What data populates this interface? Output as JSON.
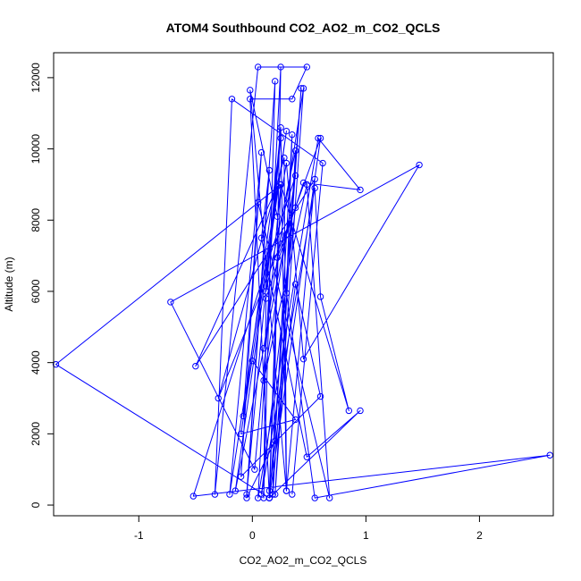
{
  "chart_data": {
    "type": "line",
    "title": "ATOM4 Southbound CO2_AO2_m_CO2_QCLS",
    "xlabel": "CO2_AO2_m_CO2_QCLS",
    "ylabel": "Altitude (m)",
    "xlim": [
      -1.75,
      2.65
    ],
    "ylim": [
      -300,
      12700
    ],
    "xticks": [
      -1,
      0,
      1,
      2
    ],
    "yticks": [
      0,
      2000,
      4000,
      6000,
      8000,
      10000,
      12000
    ],
    "grid": false,
    "legend": "none",
    "series_color": "#0000ff",
    "marker": "open-circle",
    "points": [
      {
        "x": 0.35,
        "y": 300
      },
      {
        "x": 0.62,
        "y": 9600
      },
      {
        "x": -0.18,
        "y": 11400
      },
      {
        "x": -0.33,
        "y": 300
      },
      {
        "x": 0.05,
        "y": 12300
      },
      {
        "x": 0.48,
        "y": 12300
      },
      {
        "x": 0.35,
        "y": 11400
      },
      {
        "x": -0.02,
        "y": 11400
      },
      {
        "x": 0.15,
        "y": 200
      },
      {
        "x": 0.43,
        "y": 11700
      },
      {
        "x": 0.18,
        "y": 300
      },
      {
        "x": 0.25,
        "y": 12300
      },
      {
        "x": 0.05,
        "y": 200
      },
      {
        "x": 0.58,
        "y": 10300
      },
      {
        "x": 0.95,
        "y": 8850
      },
      {
        "x": 0.45,
        "y": 9050
      },
      {
        "x": 0.12,
        "y": 5800
      },
      {
        "x": 0.1,
        "y": 200
      },
      {
        "x": 0.2,
        "y": 11900
      },
      {
        "x": -0.05,
        "y": 300
      },
      {
        "x": 0.25,
        "y": 10600
      },
      {
        "x": 0.3,
        "y": 400
      },
      {
        "x": -0.02,
        "y": 11650
      },
      {
        "x": 0.22,
        "y": 8100
      },
      {
        "x": 0.3,
        "y": 9600
      },
      {
        "x": 0.45,
        "y": 4100
      },
      {
        "x": 1.47,
        "y": 9550
      },
      {
        "x": -0.72,
        "y": 5700
      },
      {
        "x": 0.02,
        "y": 1000
      },
      {
        "x": 0.25,
        "y": 9000
      },
      {
        "x": -1.73,
        "y": 3950
      },
      {
        "x": 0.15,
        "y": 200
      },
      {
        "x": 0.25,
        "y": 9000
      },
      {
        "x": 0.85,
        "y": 2650
      },
      {
        "x": 0.6,
        "y": 5850
      },
      {
        "x": 0.55,
        "y": 8900
      },
      {
        "x": 0.08,
        "y": 300
      },
      {
        "x": 0.38,
        "y": 8350
      },
      {
        "x": -0.3,
        "y": 3000
      },
      {
        "x": 0.28,
        "y": 9750
      },
      {
        "x": 0.3,
        "y": 400
      },
      {
        "x": 0.55,
        "y": 9150
      },
      {
        "x": -0.5,
        "y": 3900
      },
      {
        "x": 0.22,
        "y": 8950
      },
      {
        "x": -0.2,
        "y": 300
      },
      {
        "x": 0.08,
        "y": 9900
      },
      {
        "x": -0.1,
        "y": 800
      },
      {
        "x": 0.6,
        "y": 3050
      },
      {
        "x": 0.38,
        "y": 6200
      },
      {
        "x": 0.15,
        "y": 400
      },
      {
        "x": 0.22,
        "y": 6950
      },
      {
        "x": 0.6,
        "y": 10300
      },
      {
        "x": 0.15,
        "y": 200
      },
      {
        "x": 0.95,
        "y": 2650
      },
      {
        "x": 0.48,
        "y": 1350
      },
      {
        "x": 0.08,
        "y": 7500
      },
      {
        "x": 0.15,
        "y": 9400
      },
      {
        "x": -0.05,
        "y": 200
      },
      {
        "x": 0.2,
        "y": 1800
      },
      {
        "x": 0.35,
        "y": 10400
      },
      {
        "x": 0.3,
        "y": 5950
      },
      {
        "x": 0.55,
        "y": 200
      },
      {
        "x": 2.62,
        "y": 1400
      },
      {
        "x": -0.52,
        "y": 250
      },
      {
        "x": 0.38,
        "y": 9250
      },
      {
        "x": 0.1,
        "y": 3500
      },
      {
        "x": 0.48,
        "y": 9000
      },
      {
        "x": 0.68,
        "y": 200
      },
      {
        "x": 0.05,
        "y": 8500
      },
      {
        "x": -0.08,
        "y": 2500
      },
      {
        "x": 0.25,
        "y": 10300
      },
      {
        "x": 0.12,
        "y": 6000
      },
      {
        "x": 0.38,
        "y": 9950
      },
      {
        "x": 0.2,
        "y": 300
      },
      {
        "x": 0.45,
        "y": 11700
      },
      {
        "x": 0.1,
        "y": 4400
      },
      {
        "x": 0.3,
        "y": 7600
      },
      {
        "x": -0.15,
        "y": 400
      },
      {
        "x": 0.3,
        "y": 10500
      },
      {
        "x": -0.1,
        "y": 2000
      },
      {
        "x": 0.38,
        "y": 2400
      },
      {
        "x": 0.0,
        "y": 4050
      }
    ]
  }
}
